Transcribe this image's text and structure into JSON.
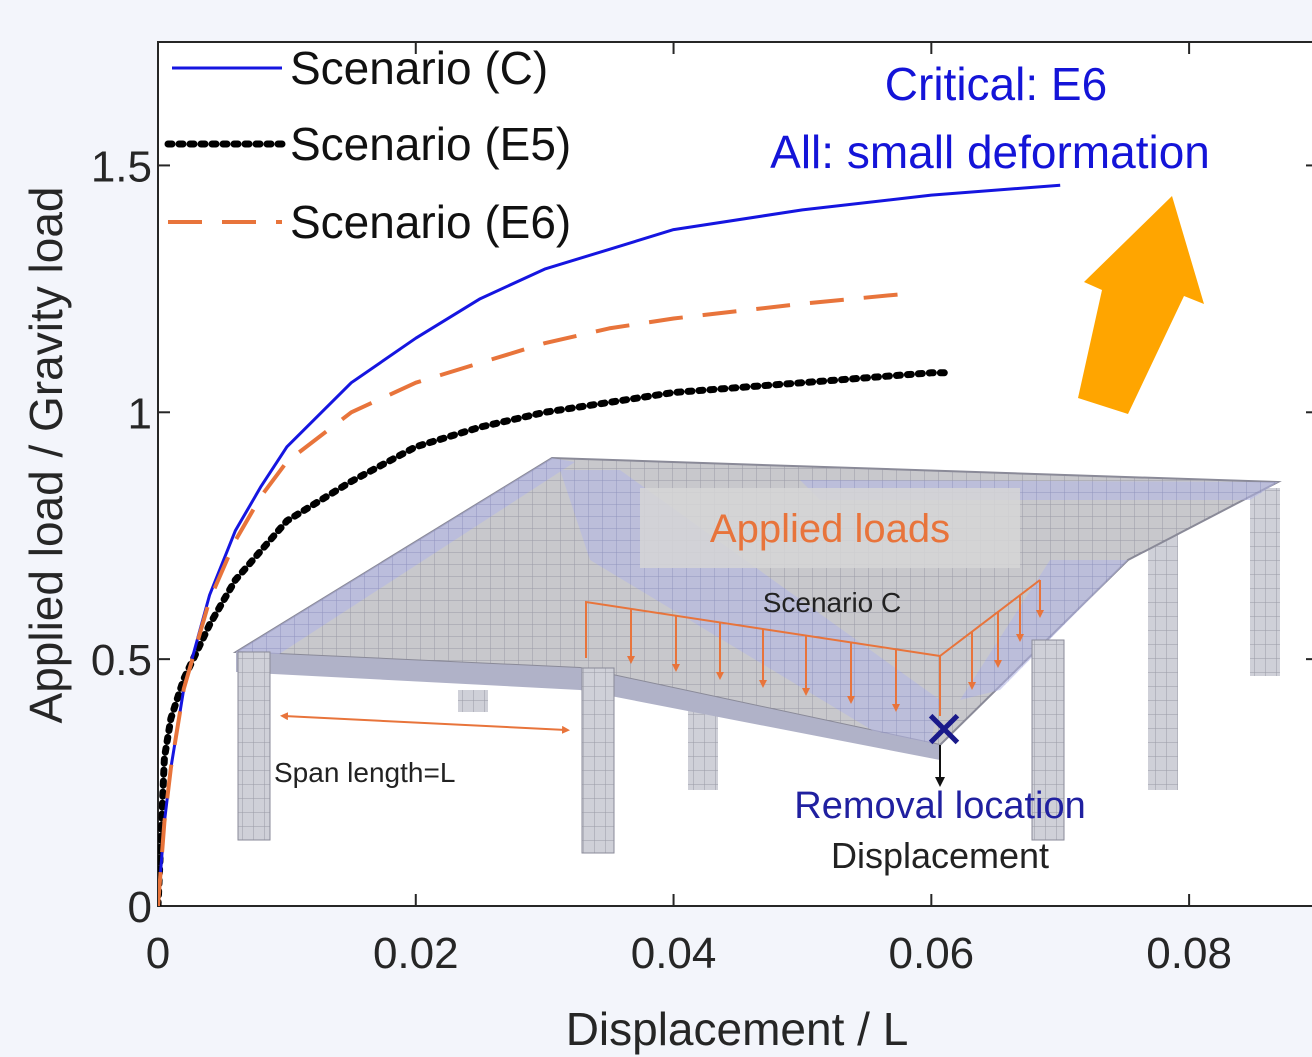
{
  "chart_data": {
    "type": "line",
    "xlabel": "Displacement / L",
    "ylabel": "Applied load / Gravity load",
    "xlim": [
      0,
      0.09
    ],
    "ylim": [
      0,
      1.75
    ],
    "xticks": [
      0,
      0.02,
      0.04,
      0.06,
      0.08
    ],
    "xtick_labels": [
      "0",
      "0.02",
      "0.04",
      "0.06",
      "0.08"
    ],
    "yticks": [
      0,
      0.5,
      1,
      1.5
    ],
    "ytick_labels": [
      "0",
      "0.5",
      "1",
      "1.5"
    ],
    "legend_position": "top-left",
    "grid": false,
    "series": [
      {
        "name": "Scenario (C)",
        "style": "solid",
        "color": "#1515e0",
        "x": [
          0,
          0.0005,
          0.001,
          0.002,
          0.004,
          0.006,
          0.008,
          0.01,
          0.015,
          0.02,
          0.025,
          0.03,
          0.035,
          0.04,
          0.05,
          0.06,
          0.07
        ],
        "y": [
          0,
          0.17,
          0.28,
          0.44,
          0.63,
          0.76,
          0.85,
          0.93,
          1.06,
          1.15,
          1.23,
          1.29,
          1.33,
          1.37,
          1.41,
          1.44,
          1.46
        ]
      },
      {
        "name": "Scenario (E5)",
        "style": "dotted",
        "color": "#000000",
        "x": [
          0,
          0.0005,
          0.001,
          0.002,
          0.004,
          0.006,
          0.008,
          0.01,
          0.015,
          0.02,
          0.025,
          0.03,
          0.035,
          0.04,
          0.05,
          0.06,
          0.0615
        ],
        "y": [
          0,
          0.3,
          0.38,
          0.46,
          0.57,
          0.66,
          0.72,
          0.78,
          0.86,
          0.93,
          0.97,
          1.0,
          1.02,
          1.04,
          1.06,
          1.08,
          1.08
        ]
      },
      {
        "name": "Scenario (E6)",
        "style": "dashed",
        "color": "#e8743b",
        "x": [
          0,
          0.0005,
          0.001,
          0.002,
          0.004,
          0.006,
          0.008,
          0.01,
          0.015,
          0.02,
          0.025,
          0.03,
          0.035,
          0.04,
          0.05,
          0.058
        ],
        "y": [
          0,
          0.17,
          0.28,
          0.44,
          0.62,
          0.74,
          0.83,
          0.9,
          1.0,
          1.06,
          1.1,
          1.14,
          1.17,
          1.19,
          1.22,
          1.24
        ]
      }
    ],
    "annotations": {
      "critical": "Critical: E6",
      "all": "All: small deformation",
      "applied_loads": "Applied loads",
      "scenario_c": "Scenario C",
      "span_length": "Span length=L",
      "removal_location": "Removal location",
      "displacement": "Displacement",
      "removal_marker": "✕"
    },
    "arrow_color": "#ffa500"
  }
}
